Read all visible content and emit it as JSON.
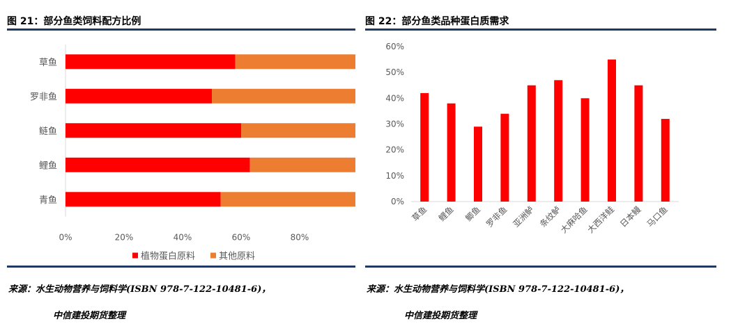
{
  "left_panel": {
    "title": "图 21：部分鱼类饲料配方比例",
    "source_line1": "来源：水生动物营养与饲料学(ISBN 978-7-122-10481-6)，",
    "source_line2": "中信建投期货整理"
  },
  "right_panel": {
    "title": "图 22：部分鱼类品种蛋白质需求",
    "source_line1": "来源：水生动物营养与饲料学(ISBN 978-7-122-10481-6)，",
    "source_line2": "中信建投期货整理"
  },
  "chart_data": [
    {
      "type": "bar",
      "orientation": "horizontal",
      "stacked": true,
      "percent": true,
      "title": "",
      "categories": [
        "草鱼",
        "罗非鱼",
        "鲢鱼",
        "鲤鱼",
        "青鱼"
      ],
      "series": [
        {
          "name": "植物蛋白原料",
          "color": "#ff0000",
          "values": [
            0.58,
            0.5,
            0.6,
            0.63,
            0.53
          ]
        },
        {
          "name": "其他原料",
          "color": "#ed7d31",
          "values": [
            0.42,
            0.5,
            0.4,
            0.37,
            0.47
          ]
        }
      ],
      "xlim": [
        0,
        1
      ],
      "xticks": [
        "0%",
        "20%",
        "40%",
        "60%",
        "80%",
        "1"
      ],
      "grid": false,
      "legend": "bottom"
    },
    {
      "type": "bar",
      "title": "",
      "categories": [
        "草鱼",
        "鲤鱼",
        "鲫鱼",
        "罗非鱼",
        "亚洲鲈",
        "条纹鲈",
        "大麻哈鱼",
        "大西洋鲑",
        "日本鳗",
        "马口鱼"
      ],
      "series": [
        {
          "color": "#ff0000",
          "values": [
            42,
            38,
            29,
            34,
            45,
            47,
            40,
            55,
            45,
            32
          ]
        }
      ],
      "ylim": [
        0,
        60
      ],
      "yticks": [
        "0%",
        "10%",
        "20%",
        "30%",
        "40%",
        "50%",
        "60%"
      ],
      "grid": false,
      "legend": "none"
    }
  ]
}
